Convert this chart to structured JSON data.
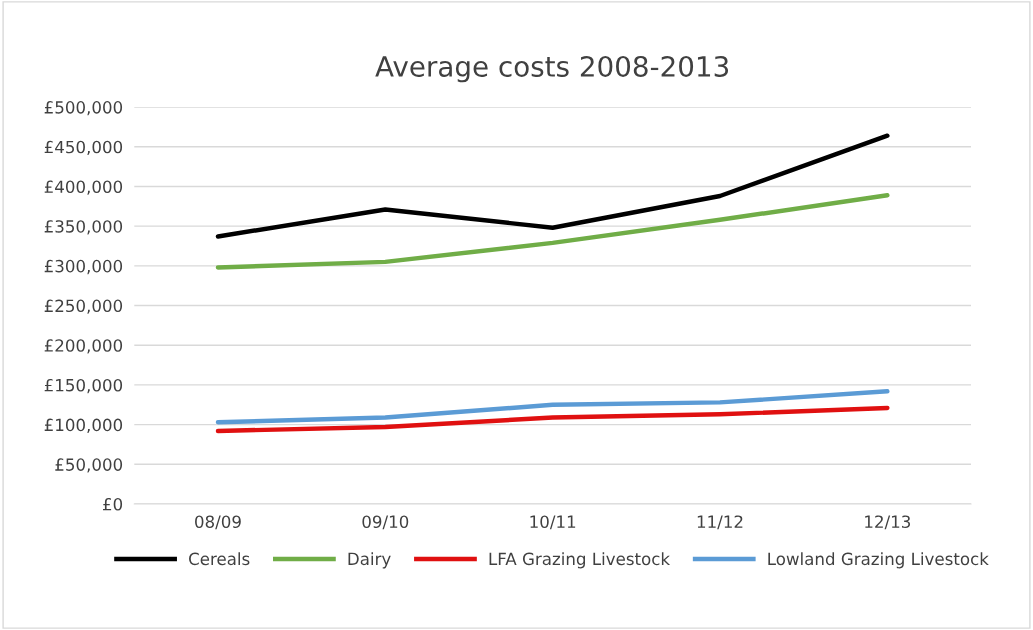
{
  "chart_data": {
    "type": "line",
    "title": "Average costs 2008-2013",
    "categories": [
      "08/09",
      "09/10",
      "10/11",
      "11/12",
      "12/13"
    ],
    "series": [
      {
        "name": "Cereals",
        "color": "#000000",
        "values": [
          337000,
          371000,
          348000,
          388000,
          464000
        ]
      },
      {
        "name": "Dairy",
        "color": "#70ad47",
        "values": [
          298000,
          305000,
          329000,
          358000,
          389000
        ]
      },
      {
        "name": "LFA Grazing Livestock",
        "color": "#e01010",
        "values": [
          92000,
          97000,
          109000,
          113000,
          121000
        ]
      },
      {
        "name": "Lowland Grazing Livestock",
        "color": "#5b9bd5",
        "values": [
          103000,
          109000,
          125000,
          128000,
          142000
        ]
      }
    ],
    "ylim": [
      0,
      500000
    ],
    "yticks": [
      {
        "value": 0,
        "label": "£0"
      },
      {
        "value": 50000,
        "label": "£50,000"
      },
      {
        "value": 100000,
        "label": "£100,000"
      },
      {
        "value": 150000,
        "label": "£150,000"
      },
      {
        "value": 200000,
        "label": "£200,000"
      },
      {
        "value": 250000,
        "label": "£250,000"
      },
      {
        "value": 300000,
        "label": "£300,000"
      },
      {
        "value": 350000,
        "label": "£350,000"
      },
      {
        "value": 400000,
        "label": "£400,000"
      },
      {
        "value": 450000,
        "label": "£450,000"
      },
      {
        "value": 500000,
        "label": "£500,000"
      }
    ],
    "grid": "y",
    "legend": "bottom",
    "marker": "none",
    "line_style": "solid"
  }
}
